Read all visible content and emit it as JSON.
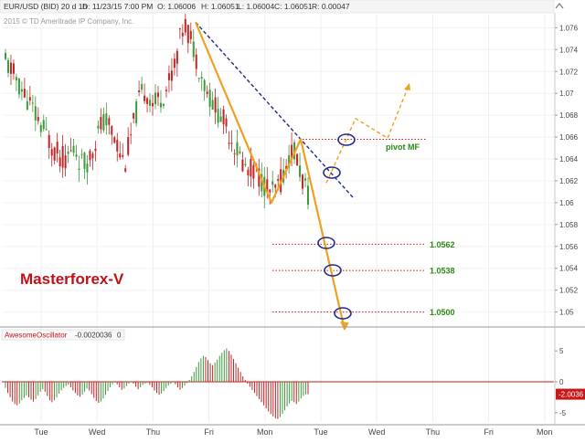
{
  "header": {
    "symbol": "EUR/USD (BID) 20 d 1h",
    "date": "D: 11/23/15 7:00 PM",
    "open": "O: 1.06006",
    "high": "H: 1.06051",
    "low": "L: 1.06004",
    "close": "C: 1.06051",
    "range": "R: 0.00047",
    "copyright": "2015 © TD Ameritrade IP Company, Inc."
  },
  "watermark": "Masterforex-V",
  "chart_data": [
    {
      "type": "candlestick",
      "title": "EUR/USD (BID) 20 d 1h",
      "x_tick_labels": [
        "Tue",
        "Wed",
        "Thu",
        "Fri",
        "Mon",
        "Tue",
        "Wed",
        "Thu",
        "Fri",
        "Mon"
      ],
      "y_tick_labels": [
        "1.076",
        "1.074",
        "1.072",
        "1.07",
        "1.068",
        "1.066",
        "1.064",
        "1.062",
        "1.06",
        "1.058",
        "1.056",
        "1.054",
        "1.052",
        "1.05"
      ],
      "ylim": [
        1.0488,
        1.0772
      ],
      "close_series": [
        1.0728,
        1.0722,
        1.0715,
        1.0705,
        1.0698,
        1.069,
        1.068,
        1.0672,
        1.0665,
        1.0655,
        1.0648,
        1.0642,
        1.064,
        1.0645,
        1.065,
        1.0638,
        1.0635,
        1.0642,
        1.0655,
        1.0668,
        1.0675,
        1.067,
        1.066,
        1.0648,
        1.0635,
        1.0655,
        1.0675,
        1.0695,
        1.0702,
        1.0698,
        1.069,
        1.0695,
        1.07,
        1.071,
        1.0725,
        1.0745,
        1.0765,
        1.0755,
        1.074,
        1.0725,
        1.071,
        1.0698,
        1.069,
        1.0682,
        1.0675,
        1.0665,
        1.0655,
        1.0645,
        1.0635,
        1.0628,
        1.0632,
        1.0625,
        1.0618,
        1.0612,
        1.0608,
        1.0615,
        1.0625,
        1.064,
        1.065,
        1.0635,
        1.062,
        1.0605
      ],
      "annotations": {
        "zigzag": [
          [
            1.0765
          ],
          [
            1.06
          ],
          [
            1.0658
          ],
          [
            1.0484
          ]
        ],
        "projection": [
          [
            1.0618
          ],
          [
            1.0677
          ],
          [
            1.0659
          ],
          [
            1.0707
          ]
        ],
        "pivot_level": 1.0658,
        "pivot_label": "pivot MF",
        "levels": [
          {
            "value": 1.0562,
            "label": "1.0562"
          },
          {
            "value": 1.0538,
            "label": "1.0538"
          },
          {
            "value": 1.05,
            "label": "1.0500"
          }
        ]
      }
    },
    {
      "type": "bar",
      "title": "AwesomeOscillator",
      "indicator_value": "-0.0020036",
      "indicator_extra": "0",
      "y_tick_labels": [
        "5",
        "0",
        "-5"
      ],
      "ylim": [
        -6.5,
        6.5
      ],
      "current_value_label": "-2.0036",
      "values": [
        -1.0,
        -1.8,
        -2.5,
        -3.2,
        -3.6,
        -3.8,
        -3.5,
        -3.0,
        -2.6,
        -2.2,
        -2.5,
        -2.9,
        -3.2,
        -2.8,
        -2.2,
        -1.6,
        -1.2,
        -1.6,
        -2.3,
        -3.0,
        -3.3,
        -3.0,
        -2.5,
        -1.9,
        -1.4,
        -1.0,
        -0.7,
        -0.5,
        -0.9,
        -1.4,
        -1.8,
        -2.2,
        -2.4,
        -2.1,
        -1.6,
        -1.1,
        -1.4,
        -2.0,
        -2.6,
        -3.1,
        -3.4,
        -3.2,
        -2.7,
        -2.1,
        -1.5,
        -0.9,
        -0.4,
        -0.1,
        -0.4,
        -0.9,
        -1.3,
        -1.1,
        -0.7,
        -0.3,
        0.1,
        -0.3,
        -0.8,
        -1.2,
        -0.9,
        -0.5,
        -0.3,
        -0.2,
        -0.5,
        -0.9,
        -1.4,
        -1.8,
        -2.1,
        -1.9,
        -1.5,
        -1.0,
        -0.6,
        -0.3,
        -0.1,
        -0.4,
        -0.9,
        -1.3,
        -1.0,
        -0.6,
        -0.2,
        0.3,
        0.9,
        1.6,
        2.4,
        3.2,
        3.8,
        4.2,
        4.0,
        3.5,
        3.0,
        2.7,
        3.1,
        3.6,
        4.2,
        4.7,
        5.1,
        5.4,
        5.0,
        4.4,
        3.7,
        3.0,
        2.3,
        1.6,
        0.9,
        0.3,
        -0.3,
        -0.8,
        -1.3,
        -1.8,
        -2.3,
        -2.8,
        -3.3,
        -3.8,
        -4.3,
        -4.8,
        -5.2,
        -5.6,
        -5.9,
        -6.0,
        -5.7,
        -5.2,
        -4.6,
        -4.0,
        -3.5,
        -3.1,
        -3.3,
        -3.6,
        -3.2,
        -2.7,
        -2.3,
        -2.0,
        -2.0036
      ]
    }
  ]
}
